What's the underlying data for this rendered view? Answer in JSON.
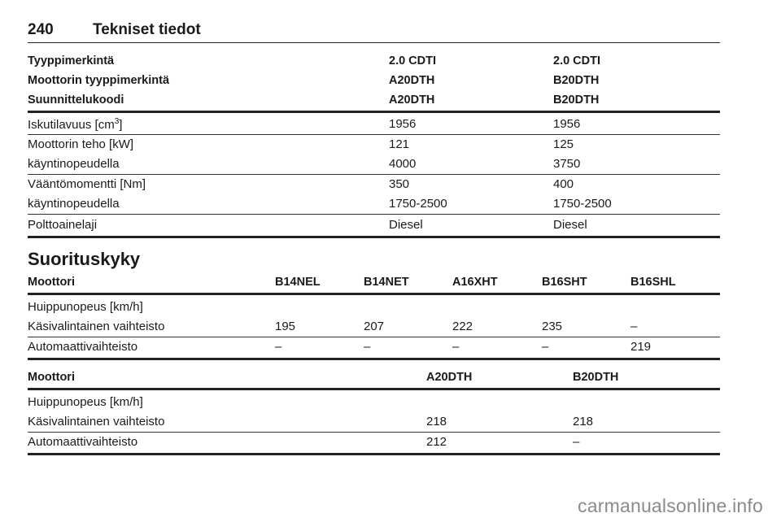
{
  "header": {
    "page_number": "240",
    "title": "Tekniset tiedot"
  },
  "engine_table": {
    "header_rows": [
      [
        "Tyyppimerkintä",
        "2.0 CDTI",
        "2.0 CDTI"
      ],
      [
        "Moottorin tyyppimerkintä",
        "A20DTH",
        "B20DTH"
      ],
      [
        "Suunnittelukoodi",
        "A20DTH",
        "B20DTH"
      ]
    ],
    "rows": [
      [
        "Iskutilavuus [cm",
        "3",
        "]",
        "1956",
        "1956"
      ],
      [
        "Moottorin teho [kW]",
        "121",
        "125"
      ],
      [
        "käyntinopeudella",
        "4000",
        "3750"
      ],
      [
        "Vääntömomentti [Nm]",
        "350",
        "400"
      ],
      [
        "käyntinopeudella",
        "1750-2500",
        "1750-2500"
      ],
      [
        "Polttoainelaji",
        "Diesel",
        "Diesel"
      ]
    ]
  },
  "performance": {
    "title": "Suorituskyky",
    "table1": {
      "headers": [
        "Moottori",
        "B14NEL",
        "B14NET",
        "A16XHT",
        "B16SHT",
        "B16SHL"
      ],
      "rows": [
        [
          "Huippunopeus [km/h]",
          "",
          "",
          "",
          "",
          ""
        ],
        [
          "Käsivalintainen vaihteisto",
          "195",
          "207",
          "222",
          "235",
          "–"
        ],
        [
          "Automaattivaihteisto",
          "–",
          "–",
          "–",
          "–",
          "219"
        ]
      ]
    },
    "table2": {
      "headers": [
        "Moottori",
        "A20DTH",
        "B20DTH"
      ],
      "rows": [
        [
          "Huippunopeus [km/h]",
          "",
          ""
        ],
        [
          "Käsivalintainen vaihteisto",
          "218",
          "218"
        ],
        [
          "Automaattivaihteisto",
          "212",
          "–"
        ]
      ]
    }
  },
  "watermark": "carmanualsonline.info"
}
